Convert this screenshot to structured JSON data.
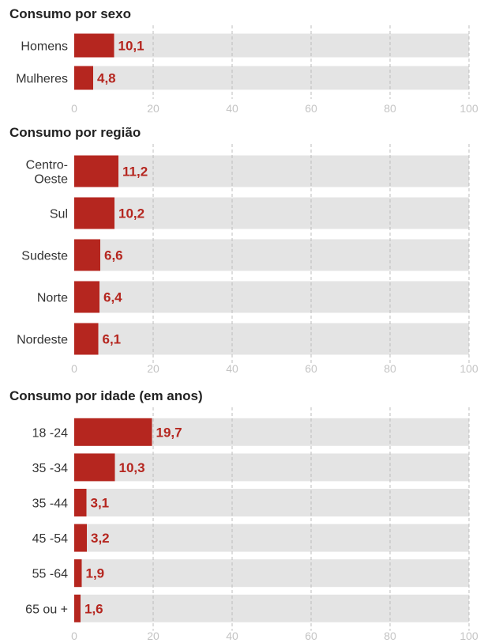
{
  "chart_data": [
    {
      "type": "bar",
      "title": "Consumo por sexo",
      "categories": [
        "Homens",
        "Mulheres"
      ],
      "values": [
        10.1,
        4.8
      ],
      "value_labels": [
        "10,1",
        "4,8"
      ],
      "xlim": [
        0,
        100
      ],
      "ticks": [
        "0",
        "20",
        "40",
        "60",
        "80",
        "100"
      ],
      "grid": true
    },
    {
      "type": "bar",
      "title": "Consumo por região",
      "categories": [
        "Centro-\nOeste",
        "Sul",
        "Sudeste",
        "Norte",
        "Nordeste"
      ],
      "values": [
        11.2,
        10.2,
        6.6,
        6.4,
        6.1
      ],
      "value_labels": [
        "11,2",
        "10,2",
        "6,6",
        "6,4",
        "6,1"
      ],
      "xlim": [
        0,
        100
      ],
      "ticks": [
        "0",
        "20",
        "40",
        "60",
        "80",
        "100"
      ],
      "grid": true
    },
    {
      "type": "bar",
      "title": "Consumo por idade (em anos)",
      "categories": [
        "18 -24",
        "35 -34",
        "35 -44",
        "45 -54",
        "55 -64",
        "65 ou +"
      ],
      "values": [
        19.7,
        10.3,
        3.1,
        3.2,
        1.9,
        1.6
      ],
      "value_labels": [
        "19,7",
        "10,3",
        "3,1",
        "3,2",
        "1,9",
        "1,6"
      ],
      "xlim": [
        0,
        100
      ],
      "ticks": [
        "0",
        "20",
        "40",
        "60",
        "80",
        "100"
      ],
      "grid": true
    }
  ],
  "colors": {
    "bar": "#b5261f",
    "track": "#e4e4e4",
    "grid": "#bdbdbd",
    "tick": "#c4c4c4"
  }
}
